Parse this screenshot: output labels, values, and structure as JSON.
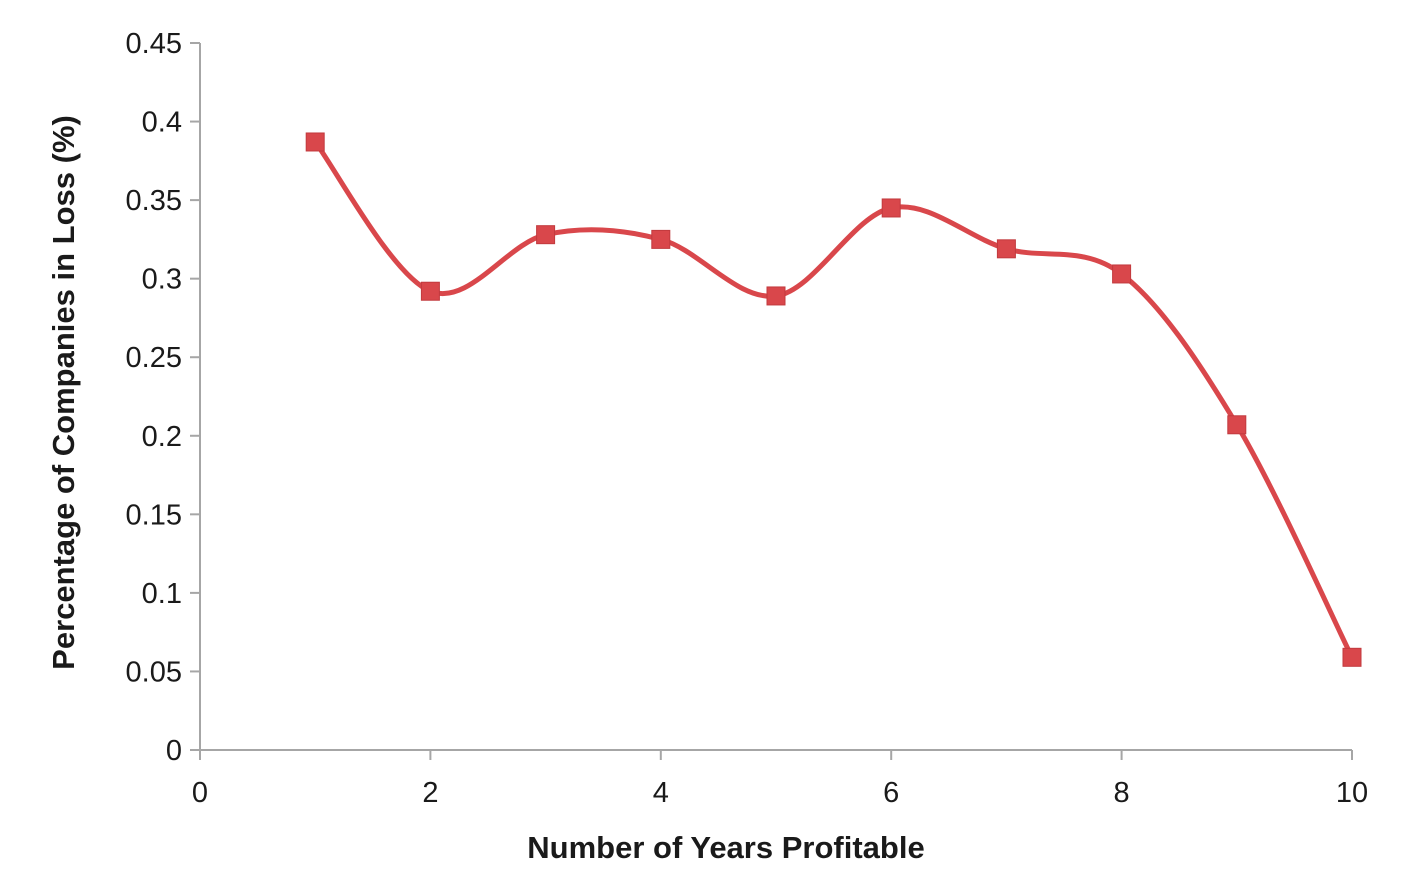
{
  "chart_data": {
    "type": "line",
    "title": "",
    "xlabel": "Number of Years Profitable",
    "ylabel": "Percentage of Companies in Loss (%)",
    "xlim": [
      0,
      10
    ],
    "ylim": [
      0,
      0.45
    ],
    "xticks": [
      0,
      2,
      4,
      6,
      8,
      10
    ],
    "xtick_labels": [
      "0",
      "2",
      "4",
      "6",
      "8",
      "10"
    ],
    "yticks": [
      0,
      0.05,
      0.1,
      0.15,
      0.2,
      0.25,
      0.3,
      0.35,
      0.4,
      0.45
    ],
    "ytick_labels": [
      "0",
      "0.05",
      "0.1",
      "0.15",
      "0.2",
      "0.25",
      "0.3",
      "0.35",
      "0.4",
      "0.45"
    ],
    "grid": false,
    "legend": "none",
    "smooth": true,
    "marker": "square",
    "series": [
      {
        "color": "#d9474b",
        "x": [
          1,
          2,
          3,
          4,
          5,
          6,
          7,
          8,
          9,
          10
        ],
        "y": [
          0.387,
          0.292,
          0.328,
          0.325,
          0.289,
          0.345,
          0.319,
          0.303,
          0.207,
          0.059
        ]
      }
    ]
  }
}
